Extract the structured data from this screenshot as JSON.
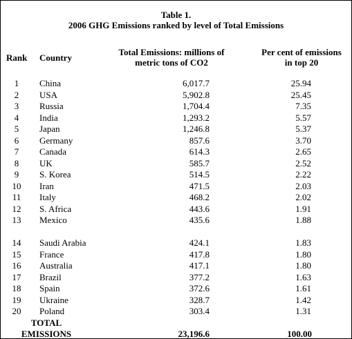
{
  "table": {
    "title_line1": "Table 1.",
    "title_line2": "2006 GHG Emissions ranked by level of Total Emissions",
    "headers": {
      "rank": "Rank",
      "country": "Country",
      "total_line1": "Total Emissions: millions of",
      "total_line2": "metric tons of CO2",
      "pct_line1": "Per cent of emissions",
      "pct_line2": "in top 20"
    },
    "rows": [
      {
        "rank": "1",
        "country": "China",
        "total": "6,017.7",
        "pct": "25.94"
      },
      {
        "rank": "2",
        "country": "USA",
        "total": "5,902.8",
        "pct": "25.45"
      },
      {
        "rank": "3",
        "country": "Russia",
        "total": "1,704.4",
        "pct": "7.35"
      },
      {
        "rank": "4",
        "country": "India",
        "total": "1,293.2",
        "pct": "5.57"
      },
      {
        "rank": "5",
        "country": "Japan",
        "total": "1,246.8",
        "pct": "5.37"
      },
      {
        "rank": "6",
        "country": "Germany",
        "total": "857.6",
        "pct": "3.70"
      },
      {
        "rank": "7",
        "country": "Canada",
        "total": "614.3",
        "pct": "2.65"
      },
      {
        "rank": "8",
        "country": "UK",
        "total": "585.7",
        "pct": "2.52"
      },
      {
        "rank": "9",
        "country": "S. Korea",
        "total": "514.5",
        "pct": "2.22"
      },
      {
        "rank": "10",
        "country": "Iran",
        "total": "471.5",
        "pct": "2.03"
      },
      {
        "rank": "11",
        "country": "Italy",
        "total": "468.2",
        "pct": "2.02"
      },
      {
        "rank": "12",
        "country": "S. Africa",
        "total": "443.6",
        "pct": "1.91"
      },
      {
        "rank": "13",
        "country": "Mexico",
        "total": "435.6",
        "pct": "1.88"
      },
      {
        "rank": "14",
        "country": "Saudi Arabia",
        "total": "424.1",
        "pct": "1.83",
        "wrap": true
      },
      {
        "rank": "15",
        "country": "France",
        "total": "417.8",
        "pct": "1.80"
      },
      {
        "rank": "16",
        "country": "Australia",
        "total": "417.1",
        "pct": "1.80"
      },
      {
        "rank": "17",
        "country": "Brazil",
        "total": "377.2",
        "pct": "1.63"
      },
      {
        "rank": "18",
        "country": "Spain",
        "total": "372.6",
        "pct": "1.61"
      },
      {
        "rank": "19",
        "country": "Ukraine",
        "total": "328.7",
        "pct": "1.42"
      },
      {
        "rank": "20",
        "country": "Poland",
        "total": "303.4",
        "pct": "1.31"
      }
    ],
    "totals": {
      "label_line1": "TOTAL",
      "label_line2": "EMISSIONS",
      "total": "23,196.6",
      "pct": "100.00"
    }
  }
}
